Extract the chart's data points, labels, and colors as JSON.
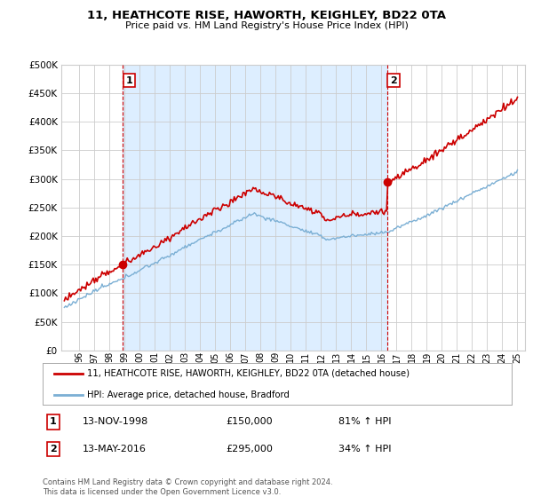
{
  "title": "11, HEATHCOTE RISE, HAWORTH, KEIGHLEY, BD22 0TA",
  "subtitle": "Price paid vs. HM Land Registry's House Price Index (HPI)",
  "sale1_date": "13-NOV-1998",
  "sale1_price": 150000,
  "sale1_x": 1998.88,
  "sale1_label": "81% ↑ HPI",
  "sale2_date": "13-MAY-2016",
  "sale2_price": 295000,
  "sale2_x": 2016.37,
  "sale2_label": "34% ↑ HPI",
  "legend_line1": "11, HEATHCOTE RISE, HAWORTH, KEIGHLEY, BD22 0TA (detached house)",
  "legend_line2": "HPI: Average price, detached house, Bradford",
  "footnote1": "Contains HM Land Registry data © Crown copyright and database right 2024.",
  "footnote2": "This data is licensed under the Open Government Licence v3.0.",
  "hpi_color": "#7bafd4",
  "price_color": "#cc0000",
  "marker_color": "#cc0000",
  "shade_color": "#ddeeff",
  "ylim": [
    0,
    500000
  ],
  "yticks": [
    0,
    50000,
    100000,
    150000,
    200000,
    250000,
    300000,
    350000,
    400000,
    450000,
    500000
  ],
  "background_color": "#ffffff",
  "grid_color": "#cccccc",
  "xstart": 1995,
  "xend": 2025
}
